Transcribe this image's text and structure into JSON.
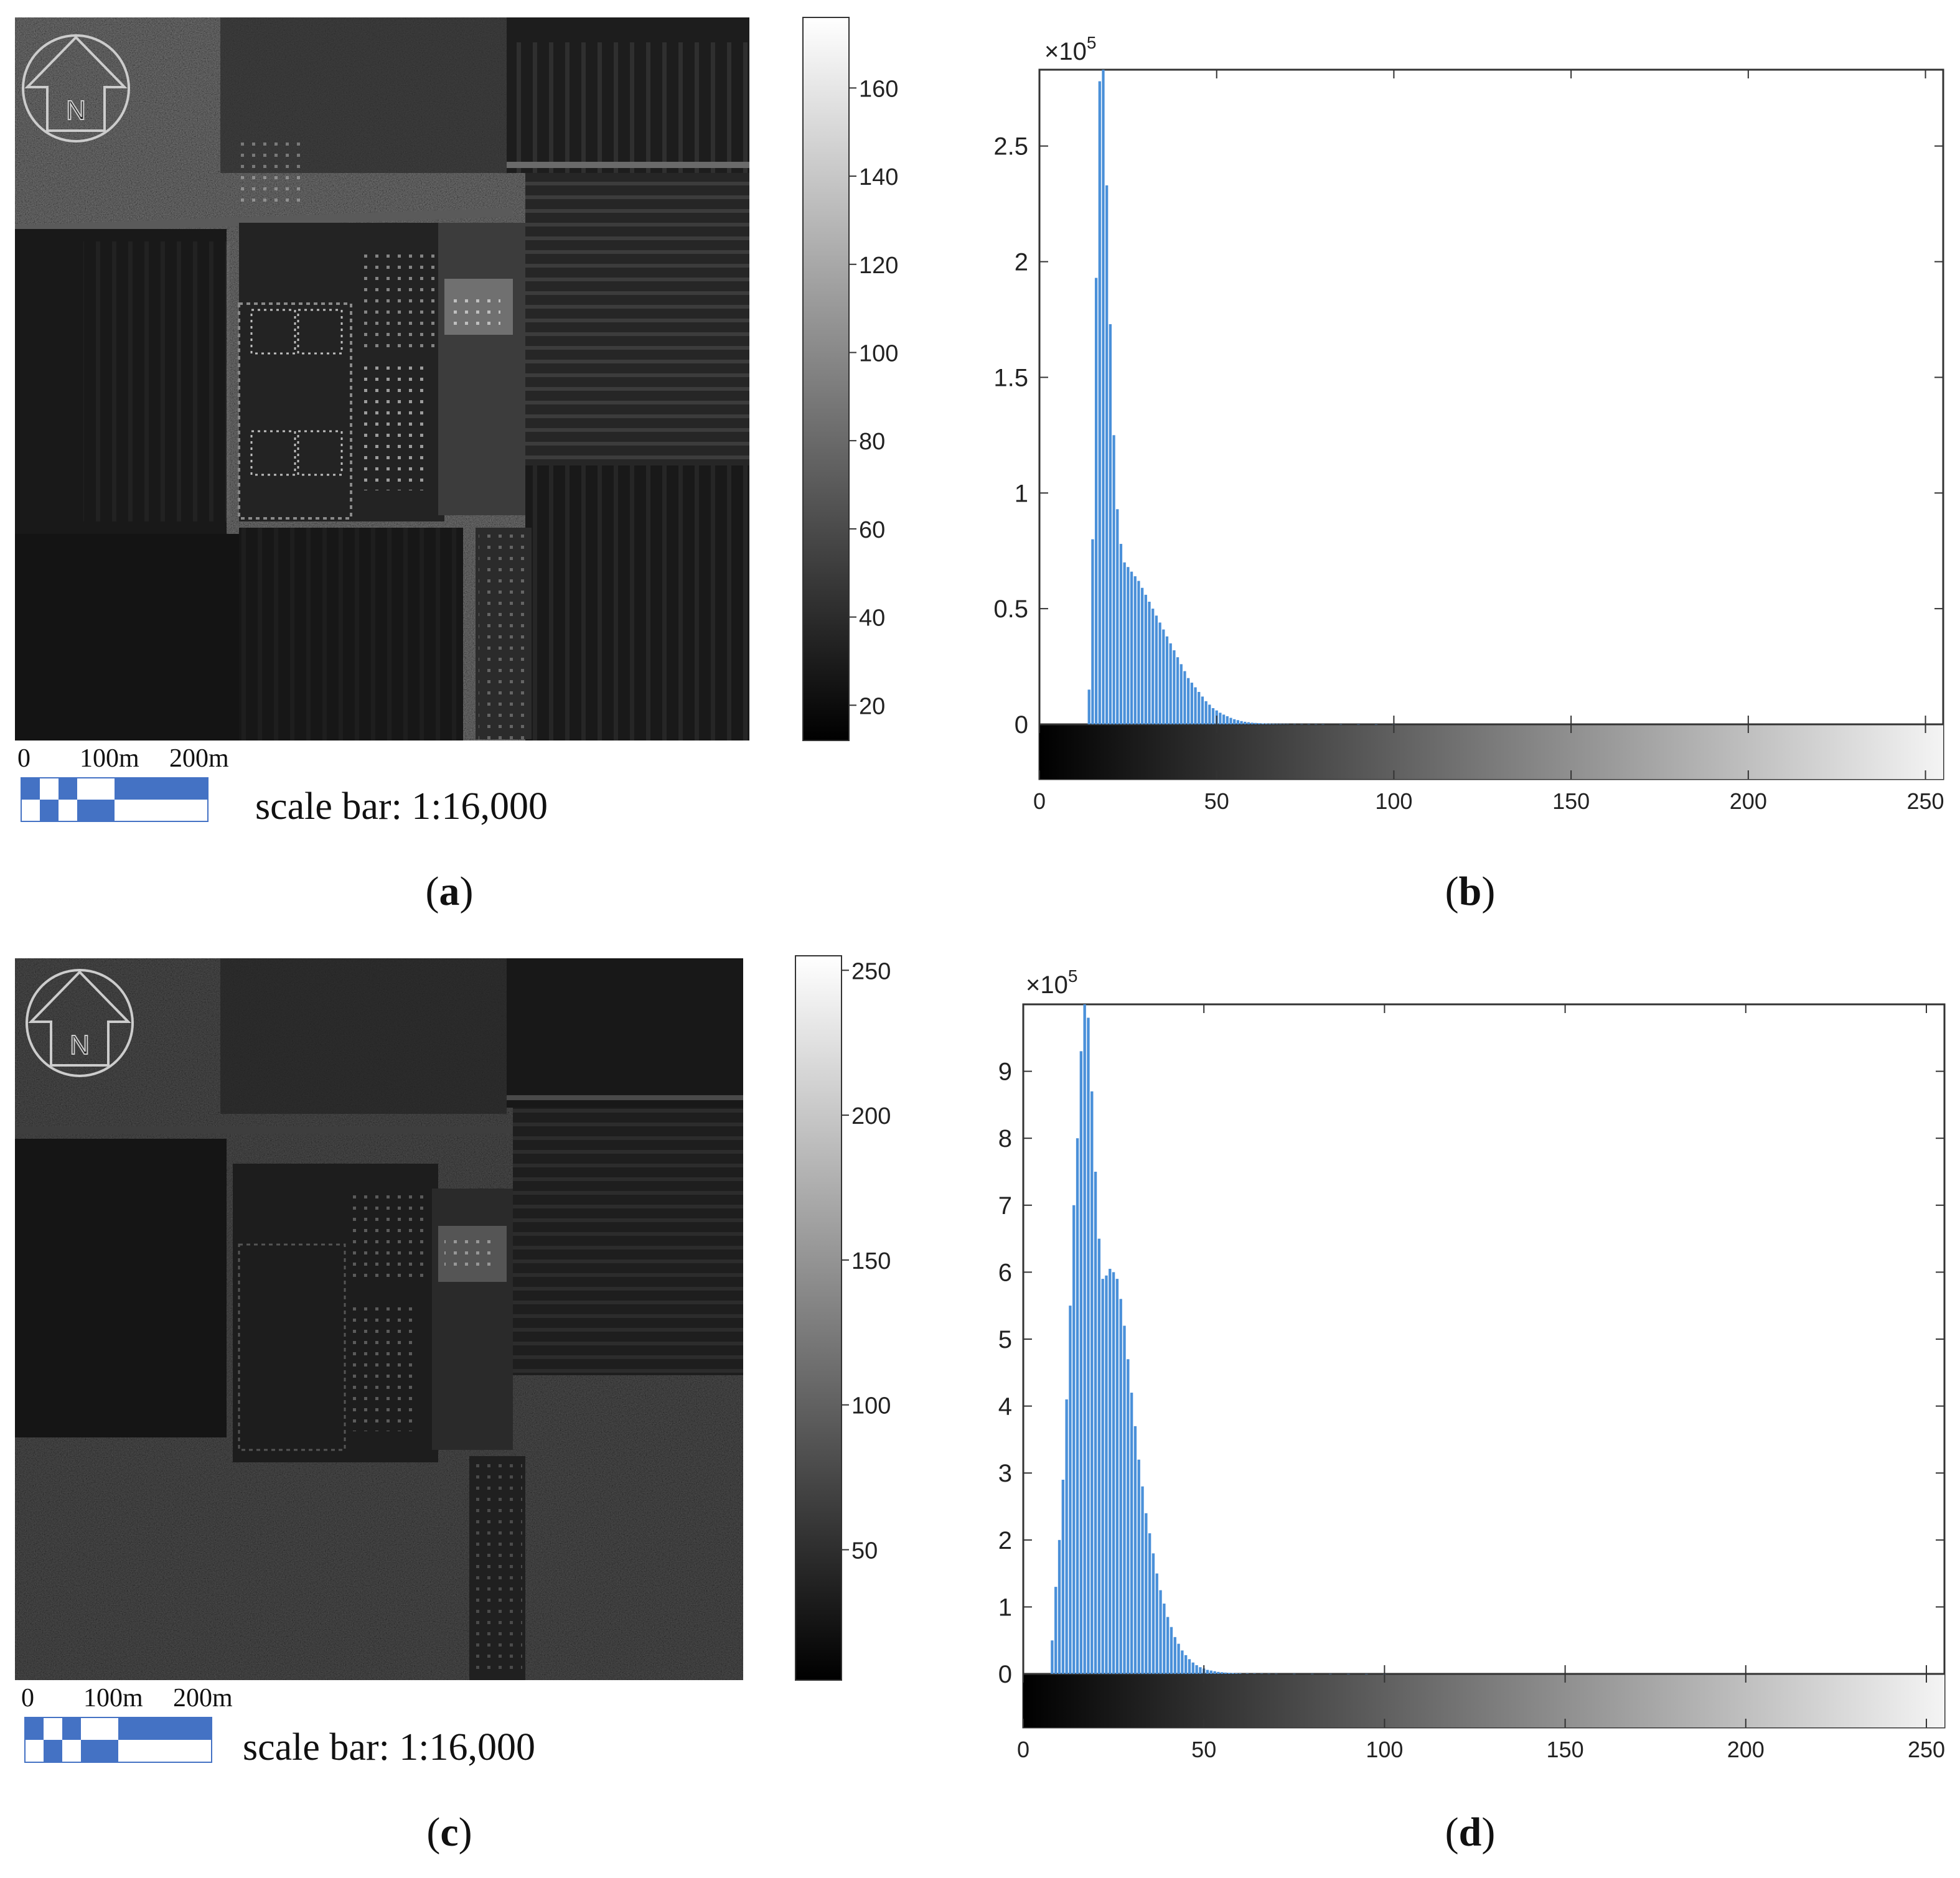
{
  "panels": [
    {
      "id": "a",
      "label_prefix": "(",
      "label_letter": "a",
      "label_suffix": ")",
      "colorbar_ticks": [
        "160",
        "140",
        "120",
        "100",
        "80",
        "60",
        "40",
        "20"
      ],
      "colorbar_range": [
        12,
        176
      ],
      "scale_bar": {
        "tick_labels": [
          "0",
          "100m",
          "200m"
        ],
        "caption": "scale bar: 1:16,000"
      },
      "north_arrow_letter": "N"
    },
    {
      "id": "c",
      "label_prefix": "(",
      "label_letter": "c",
      "label_suffix": ")",
      "colorbar_ticks": [
        "250",
        "200",
        "150",
        "100",
        "50"
      ],
      "colorbar_range": [
        5,
        255
      ],
      "scale_bar": {
        "tick_labels": [
          "0",
          "100m",
          "200m"
        ],
        "caption": "scale bar: 1:16,000"
      },
      "north_arrow_letter": "N"
    }
  ],
  "histogram_labels": [
    {
      "id": "b",
      "label_prefix": "(",
      "label_letter": "b",
      "label_suffix": ")"
    },
    {
      "id": "d",
      "label_prefix": "(",
      "label_letter": "d",
      "label_suffix": ")"
    }
  ],
  "colors": {
    "bars": "#4a90d9",
    "scale_blue": "#4472c4",
    "axis": "#333333"
  },
  "chart_data": [
    {
      "type": "bar",
      "panel": "b",
      "multiplier": "×10",
      "multiplier_exponent": "5",
      "x_ticks": [
        "0",
        "50",
        "100",
        "150",
        "200",
        "250"
      ],
      "y_ticks": [
        "0",
        "0.5",
        "1",
        "1.5",
        "2",
        "2.5"
      ],
      "xlim": [
        0,
        255
      ],
      "ylim": [
        0,
        2.83
      ],
      "x": [
        14,
        15,
        16,
        17,
        18,
        19,
        20,
        21,
        22,
        23,
        24,
        25,
        26,
        27,
        28,
        29,
        30,
        31,
        32,
        33,
        34,
        35,
        36,
        37,
        38,
        39,
        40,
        41,
        42,
        43,
        44,
        45,
        46,
        47,
        48,
        49,
        50,
        51,
        52,
        53,
        54,
        55,
        56,
        57,
        58,
        59,
        60,
        61,
        62,
        63,
        64,
        65,
        66,
        67,
        68,
        69,
        70,
        72,
        74,
        76,
        78,
        80,
        85,
        90,
        95,
        100
      ],
      "values": [
        0.15,
        0.8,
        1.93,
        2.78,
        2.83,
        2.33,
        1.73,
        1.25,
        0.93,
        0.78,
        0.7,
        0.68,
        0.66,
        0.64,
        0.62,
        0.59,
        0.56,
        0.53,
        0.5,
        0.47,
        0.44,
        0.41,
        0.38,
        0.35,
        0.32,
        0.29,
        0.26,
        0.23,
        0.2,
        0.18,
        0.16,
        0.14,
        0.12,
        0.1,
        0.085,
        0.07,
        0.06,
        0.05,
        0.042,
        0.035,
        0.028,
        0.022,
        0.018,
        0.014,
        0.011,
        0.009,
        0.007,
        0.006,
        0.005,
        0.004,
        0.0035,
        0.003,
        0.0025,
        0.002,
        0.0018,
        0.0015,
        0.0013,
        0.001,
        0.0008,
        0.0007,
        0.0006,
        0.0005,
        0.0004,
        0.0003,
        0.0002,
        0.0001
      ]
    },
    {
      "type": "bar",
      "panel": "d",
      "multiplier": "×10",
      "multiplier_exponent": "5",
      "x_ticks": [
        "0",
        "50",
        "100",
        "150",
        "200",
        "250"
      ],
      "y_ticks": [
        "0",
        "1",
        "2",
        "3",
        "4",
        "5",
        "6",
        "7",
        "8",
        "9"
      ],
      "xlim": [
        0,
        255
      ],
      "ylim": [
        0,
        10
      ],
      "x": [
        8,
        9,
        10,
        11,
        12,
        13,
        14,
        15,
        16,
        17,
        18,
        19,
        20,
        21,
        22,
        23,
        24,
        25,
        26,
        27,
        28,
        29,
        30,
        31,
        32,
        33,
        34,
        35,
        36,
        37,
        38,
        39,
        40,
        41,
        42,
        43,
        44,
        45,
        46,
        47,
        48,
        49,
        50,
        51,
        52,
        53,
        54,
        55,
        56,
        57,
        58,
        59,
        60,
        62,
        64,
        66,
        68,
        70,
        75,
        80,
        85,
        90,
        95,
        100
      ],
      "values": [
        0.5,
        1.3,
        2.0,
        2.9,
        4.1,
        5.5,
        7.0,
        8.0,
        9.3,
        10.0,
        9.8,
        8.7,
        7.5,
        6.5,
        5.9,
        5.95,
        6.05,
        6.0,
        5.9,
        5.6,
        5.2,
        4.7,
        4.2,
        3.7,
        3.2,
        2.8,
        2.4,
        2.1,
        1.8,
        1.5,
        1.25,
        1.05,
        0.85,
        0.7,
        0.55,
        0.45,
        0.35,
        0.28,
        0.22,
        0.17,
        0.13,
        0.1,
        0.08,
        0.06,
        0.05,
        0.04,
        0.03,
        0.025,
        0.02,
        0.016,
        0.013,
        0.01,
        0.008,
        0.006,
        0.005,
        0.004,
        0.003,
        0.0025,
        0.002,
        0.0015,
        0.001,
        0.0008,
        0.0005,
        0.0003
      ]
    }
  ]
}
